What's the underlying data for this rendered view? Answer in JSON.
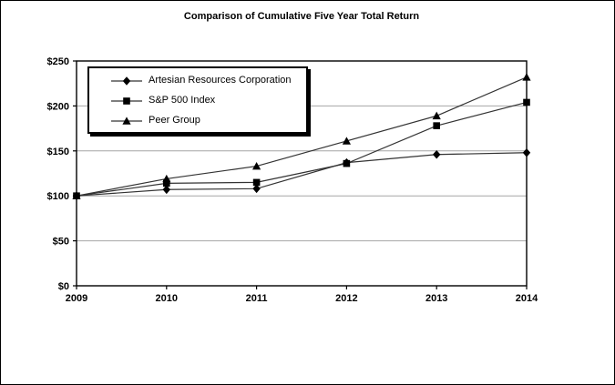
{
  "chart_title": "Comparison of Cumulative Five Year Total Return",
  "chart_data": {
    "type": "line",
    "title": "Comparison of Cumulative Five Year Total Return",
    "categories": [
      "2009",
      "2010",
      "2011",
      "2012",
      "2013",
      "2014"
    ],
    "series": [
      {
        "name": "Artesian Resources Corporation",
        "marker": "diamond",
        "values": [
          100,
          107,
          108,
          137,
          146,
          148
        ]
      },
      {
        "name": "S&P 500 Index",
        "marker": "square",
        "values": [
          100,
          114,
          115,
          136,
          178,
          204
        ]
      },
      {
        "name": "Peer Group",
        "marker": "triangle",
        "values": [
          100,
          119,
          133,
          161,
          189,
          232
        ]
      }
    ],
    "xlabel": "",
    "ylabel": "",
    "ylim": [
      0,
      250
    ],
    "ytick_step": 50,
    "ytick_prefix": "$",
    "ytick_labels": [
      "$0",
      "$50",
      "$100",
      "$150",
      "$200",
      "$250"
    ],
    "grid": true,
    "legend_position": "upper-left-inside"
  },
  "colors": {
    "background": "#ffffff",
    "axis": "#000000",
    "gridline": "#a6a6a6",
    "series_line": "#333333",
    "marker_fill": "#000000",
    "text": "#000000",
    "legend_border": "#000000",
    "legend_shadow": "#000000"
  }
}
